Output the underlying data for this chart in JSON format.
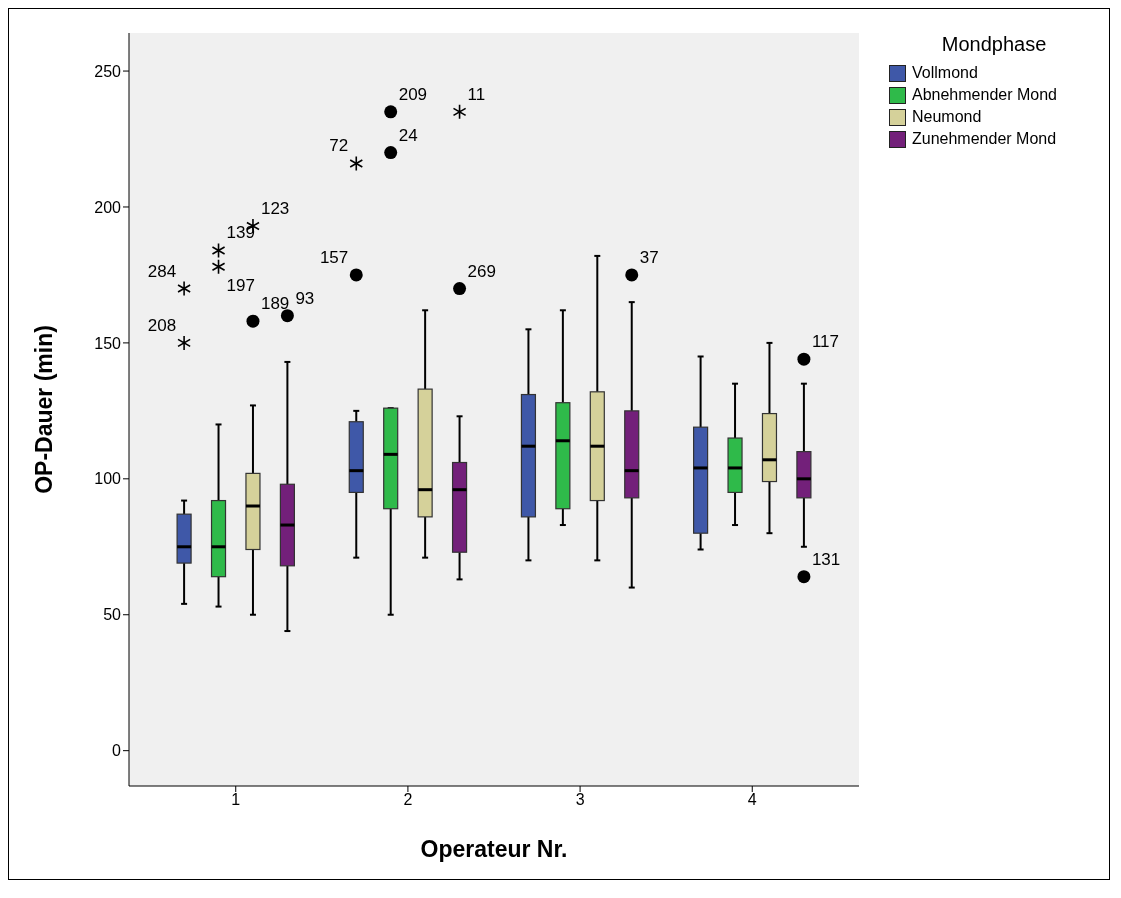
{
  "chart_data": {
    "type": "box",
    "xlabel": "Operateur Nr.",
    "ylabel": "OP-Dauer (min)",
    "legend_title": "Mondphase",
    "legend": "top right",
    "categories": [
      "1",
      "2",
      "3",
      "4"
    ],
    "ylim": [
      -13,
      264
    ],
    "yticks": [
      0,
      50,
      100,
      150,
      200,
      250
    ],
    "series": [
      {
        "name": "Vollmond",
        "color": "#3f58a8",
        "boxes": [
          {
            "low": 54,
            "q1": 69,
            "median": 75,
            "q3": 87,
            "high": 92,
            "outliers": [
              170,
              150
            ]
          },
          {
            "low": 71,
            "q1": 95,
            "median": 103,
            "q3": 121,
            "high": 125,
            "outliers": [
              175,
              216
            ]
          },
          {
            "low": 70,
            "q1": 86,
            "median": 112,
            "q3": 131,
            "high": 155
          },
          {
            "low": 74,
            "q1": 80,
            "median": 104,
            "q3": 119,
            "high": 145
          }
        ]
      },
      {
        "name": "Abnehmender Mond",
        "color": "#2fba4a",
        "boxes": [
          {
            "low": 53,
            "q1": 64,
            "median": 75,
            "q3": 92,
            "high": 120,
            "outliers": [
              184,
              178
            ]
          },
          {
            "low": 50,
            "q1": 89,
            "median": 109,
            "q3": 126,
            "high": 126,
            "outliers": [
              235,
              220
            ]
          },
          {
            "low": 83,
            "q1": 89,
            "median": 114,
            "q3": 128,
            "high": 162
          },
          {
            "low": 83,
            "q1": 95,
            "median": 104,
            "q3": 115,
            "high": 135
          }
        ]
      },
      {
        "name": "Neumond",
        "color": "#d5d19a",
        "boxes": [
          {
            "low": 50,
            "q1": 74,
            "median": 90,
            "q3": 102,
            "high": 127,
            "outliers": [
              193,
              158
            ]
          },
          {
            "low": 71,
            "q1": 86,
            "median": 96,
            "q3": 133,
            "high": 162
          },
          {
            "low": 70,
            "q1": 92,
            "median": 112,
            "q3": 132,
            "high": 182
          },
          {
            "low": 80,
            "q1": 99,
            "median": 107,
            "q3": 124,
            "high": 150
          }
        ]
      },
      {
        "name": "Zunehmender Mond",
        "color": "#73207a",
        "boxes": [
          {
            "low": 44,
            "q1": 68,
            "median": 83,
            "q3": 98,
            "high": 143,
            "outliers": [
              160
            ]
          },
          {
            "low": 63,
            "q1": 73,
            "median": 96,
            "q3": 106,
            "high": 123,
            "outliers": [
              170,
              235
            ]
          },
          {
            "low": 60,
            "q1": 93,
            "median": 103,
            "q3": 125,
            "high": 165,
            "outliers": [
              175
            ]
          },
          {
            "low": 75,
            "q1": 93,
            "median": 100,
            "q3": 110,
            "high": 135,
            "outliers": [
              144,
              64
            ]
          }
        ]
      }
    ],
    "annotations": [
      "284",
      "208",
      "157",
      "72",
      "139",
      "197",
      "209",
      "24",
      "123",
      "189",
      "93",
      "269",
      "11",
      "37",
      "117",
      "131"
    ]
  }
}
